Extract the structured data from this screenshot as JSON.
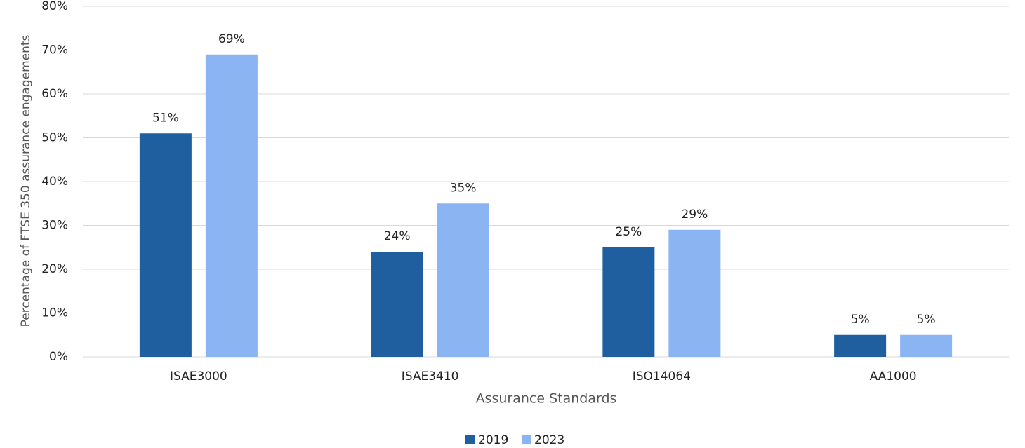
{
  "chart_data": {
    "type": "bar",
    "x_label": "Assurance Standards",
    "y_label": "Percentage of FTSE 350 assurance engagements",
    "categories": [
      "ISAE3000",
      "ISAE3410",
      "ISO14064",
      "AA1000"
    ],
    "series": [
      {
        "name": "2019",
        "color": "#1f5fa0",
        "values": [
          51,
          24,
          25,
          5
        ],
        "value_labels": [
          "51%",
          "24%",
          "25%",
          "5%"
        ]
      },
      {
        "name": "2023",
        "color": "#8ab4f2",
        "values": [
          69,
          35,
          29,
          5
        ],
        "value_labels": [
          "69%",
          "35%",
          "29%",
          "5%"
        ]
      }
    ],
    "ylim": [
      0,
      80
    ],
    "yticks": [
      {
        "value": 0,
        "label": "0%"
      },
      {
        "value": 10,
        "label": "10%"
      },
      {
        "value": 20,
        "label": "20%"
      },
      {
        "value": 30,
        "label": "30%"
      },
      {
        "value": 40,
        "label": "40%"
      },
      {
        "value": 50,
        "label": "50%"
      },
      {
        "value": 60,
        "label": "60%"
      },
      {
        "value": 70,
        "label": "70%"
      },
      {
        "value": 80,
        "label": "80%"
      }
    ],
    "grid": true,
    "legend": "bottom"
  }
}
